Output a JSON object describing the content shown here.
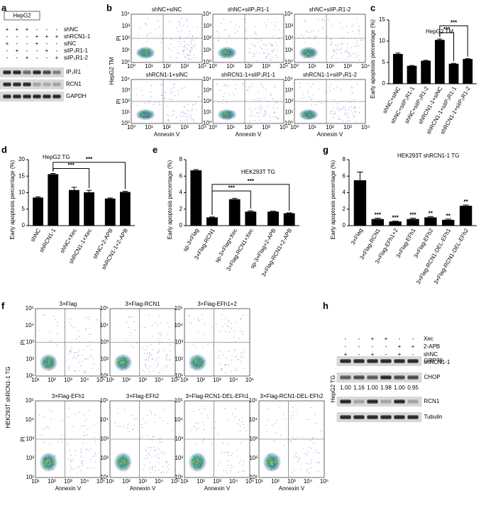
{
  "panel_letters": [
    "a",
    "b",
    "c",
    "d",
    "e",
    "f",
    "g",
    "h"
  ],
  "blot_a": {
    "title": "HepG2",
    "conditions": [
      "shNC",
      "shRCN1-1",
      "siNC",
      "siIP₃R1-1",
      "siIP₃R1-2"
    ],
    "signs": [
      [
        "+",
        "+",
        "+",
        "-",
        "-",
        "-"
      ],
      [
        "-",
        "-",
        "-",
        "+",
        "+",
        "+"
      ],
      [
        "+",
        "-",
        "-",
        "+",
        "-",
        "-"
      ],
      [
        "-",
        "+",
        "-",
        "-",
        "+",
        "-"
      ],
      [
        "-",
        "-",
        "+",
        "-",
        "-",
        "+"
      ]
    ],
    "bands": [
      "IP₃R1",
      "RCN1",
      "GAPDH"
    ]
  },
  "flow_b": {
    "row_label": "HepG2 TM",
    "samples": [
      "shNC+siNC",
      "shNC+siIP₃R1-1",
      "shNC+siIP₃R1-2",
      "shRCN1-1+siNC",
      "shRCN1-1+siIP₃R1-1",
      "shRCN1-1+siIP₃R1-2"
    ],
    "y_label": "PI",
    "x_label": "Annexin V",
    "ticks": [
      "10⁰",
      "10¹",
      "10²",
      "10³",
      "10⁴"
    ]
  },
  "flow_f": {
    "row_label": "HEK293T shRCN1-1 TG",
    "samples": [
      "3×Flag",
      "3×Flag-RCN1",
      "3×Flag-EFh1+2",
      "3×Flag-EFh1",
      "3×Flag-EFh2",
      "3×Flag-RCN1-DEL-EFh1",
      "3×Flag-RCN1-DEL-EFh2"
    ],
    "y_label": "PI",
    "x_label": "Annexin V",
    "ticks": [
      "10¹",
      "10²",
      "10³",
      "10⁴",
      "10⁵"
    ]
  },
  "blot_h": {
    "row_label": "HepG2 TG",
    "conditions": [
      "Xec",
      "2-APB",
      "shNC",
      "shRCN1-1"
    ],
    "signs": [
      [
        "-",
        "-",
        "+",
        "+",
        "-",
        "-"
      ],
      [
        "-",
        "-",
        "-",
        "-",
        "+",
        "+"
      ],
      [
        "+",
        "-",
        "+",
        "-",
        "+",
        "-"
      ],
      [
        "-",
        "+",
        "-",
        "+",
        "-",
        "+"
      ]
    ],
    "bands": [
      "GRP78",
      "CHOP",
      "RCN1",
      "Tubulin"
    ],
    "quantification": [
      "1.00",
      "1.16",
      "1.00",
      "1.98",
      "1.00",
      "0.95"
    ]
  },
  "chart_data": [
    {
      "type": "bar",
      "title": "HepG2 TM",
      "y_label": "Early apoptosis percentage (%)",
      "categories": [
        "shNC+siNC",
        "shNC+siIP₃R1-1",
        "shNC+siIP₃R1-2",
        "shRCN1-1+siNC",
        "shRCN1-1+siIP₃R1-1",
        "shRCN1-1+siIP₃R1-2"
      ],
      "values": [
        7.0,
        4.2,
        5.4,
        10.3,
        4.7,
        5.8
      ],
      "errors": [
        0.2,
        0.1,
        0.1,
        0.2,
        0.1,
        0.1
      ],
      "ylim": [
        0,
        15
      ],
      "yticks": [
        0,
        5,
        10,
        15
      ],
      "color": "#000000",
      "annotations": [
        "***",
        "***"
      ]
    },
    {
      "type": "bar",
      "title": "HepG2 TG",
      "y_label": "Early apoptosis percentage (%)",
      "categories": [
        "shNC",
        "shRCN1-1",
        "shNC+Xec",
        "shRCN1-1+Xec",
        "shNC+2-APB",
        "shRCN1-1+2-APB"
      ],
      "values": [
        8.5,
        15.6,
        10.8,
        10.1,
        8.2,
        10.2
      ],
      "errors": [
        0.2,
        0.2,
        0.8,
        0.6,
        0.2,
        0.2
      ],
      "ylim": [
        0,
        20
      ],
      "yticks": [
        0,
        5,
        10,
        15,
        20
      ],
      "color": "#000000",
      "annotations": [
        "***",
        "***"
      ]
    },
    {
      "type": "bar",
      "title": "HEK293T TG",
      "y_label": "Early apoptosis percentage (%)",
      "categories": [
        "sp-3×Flag",
        "3×Flag-RCN1",
        "sp-3×Flag+Xec",
        "3×Flag-RCN1+Xec",
        "sp-3×Flag+2-APB",
        "3×Flag-RCN1+2-APB"
      ],
      "values": [
        6.7,
        1.0,
        3.2,
        1.7,
        1.7,
        1.5
      ],
      "errors": [
        0.1,
        0.05,
        0.1,
        0.1,
        0.05,
        0.05
      ],
      "ylim": [
        0,
        8
      ],
      "yticks": [
        0,
        2,
        4,
        6,
        8
      ],
      "color": "#000000",
      "annotations": [
        "***",
        "***"
      ]
    },
    {
      "type": "bar",
      "title": "HEK293T shRCN1-1 TG",
      "y_label": "Early apoptosis percentage (%)",
      "categories": [
        "3×Flag",
        "3×Flag-RCN1",
        "3×Flag-EFh1+2",
        "3×Flag-EFh1",
        "3×Flag-EFh2",
        "3×Flag-RCN1-DEL-EFh1",
        "3×Flag-RCN1-DEL-EFh2"
      ],
      "values": [
        5.5,
        0.8,
        0.5,
        0.8,
        1.0,
        0.7,
        2.4
      ],
      "errors": [
        1.0,
        0.1,
        0.05,
        0.1,
        0.1,
        0.1,
        0.1
      ],
      "ylim": [
        0,
        8
      ],
      "yticks": [
        0,
        2,
        4,
        6,
        8
      ],
      "color": "#000000",
      "annotations": [
        null,
        "***",
        "***",
        "***",
        "**",
        "**",
        "**"
      ]
    }
  ]
}
